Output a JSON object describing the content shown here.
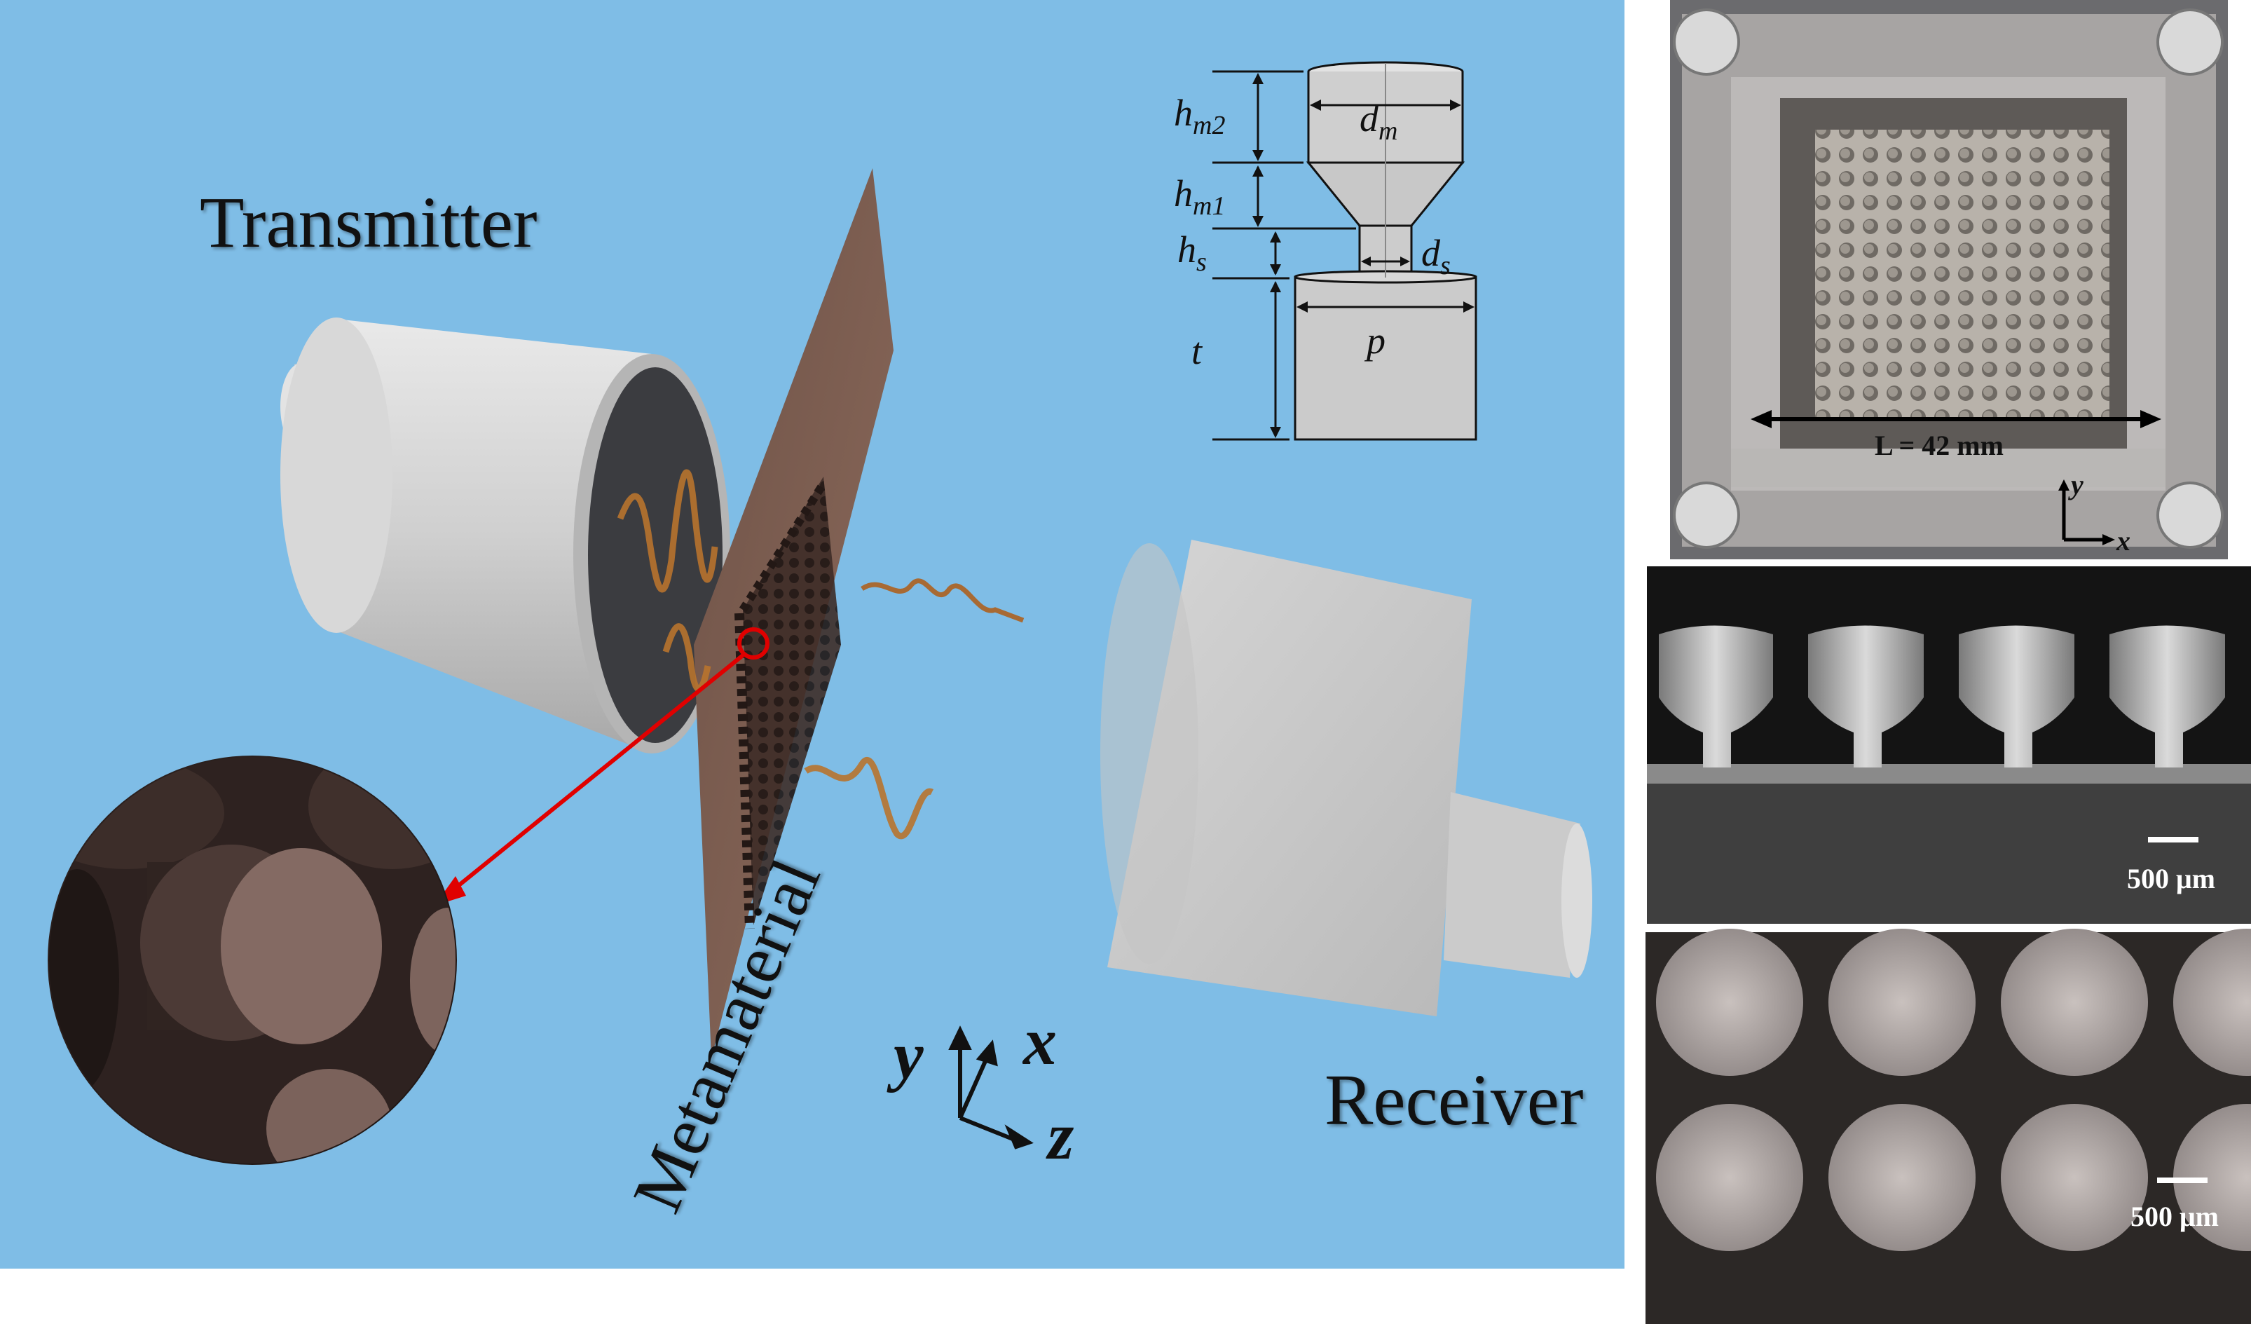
{
  "labels": {
    "transmitter": "Transmitter",
    "receiver": "Receiver",
    "metamaterial": "Metamaterial"
  },
  "axes_main": {
    "y": "y",
    "x": "x",
    "z": "z"
  },
  "unit_cell": {
    "hm2": {
      "base": "h",
      "sub": "m2"
    },
    "hm1": {
      "base": "h",
      "sub": "m1"
    },
    "hs": {
      "base": "h",
      "sub": "s"
    },
    "t": "t",
    "dm": {
      "base": "d",
      "sub": "m"
    },
    "ds": {
      "base": "d",
      "sub": "s"
    },
    "p": "p"
  },
  "photo_top": {
    "length_label": "L = 42 mm",
    "axis_y": "y",
    "axis_x": "x"
  },
  "photo_mid": {
    "scale": "500 μm"
  },
  "photo_bottom": {
    "scale": "500 μm"
  },
  "colors": {
    "background": "#7fbde6",
    "plate": "#7a5a4d",
    "transducer": "#d2d2d2",
    "wave": "#b8732e",
    "arrow": "#e00000"
  }
}
